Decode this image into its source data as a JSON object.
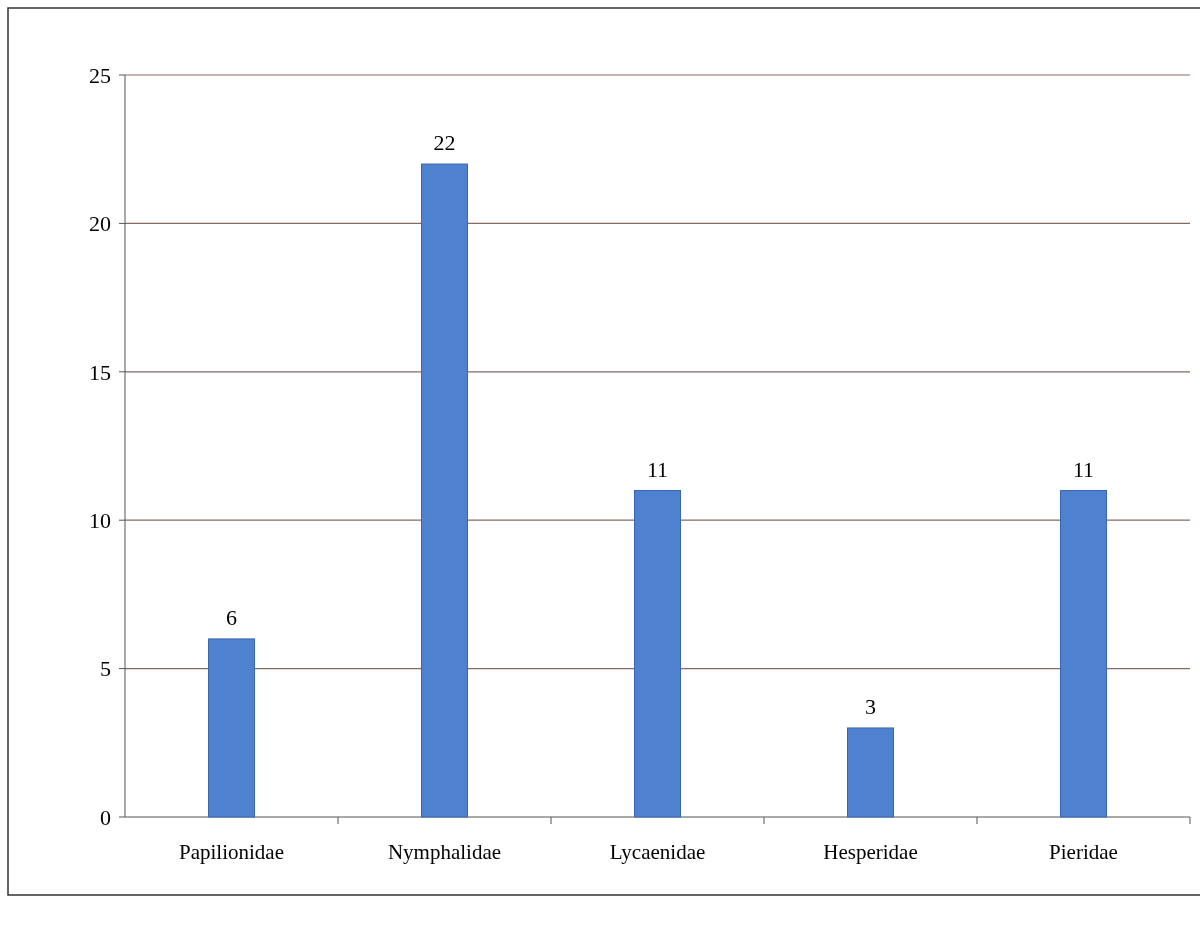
{
  "chart_data": {
    "type": "bar",
    "categories": [
      "Papilionidae",
      "Nymphalidae",
      "Lycaenidae",
      "Hesperidae",
      "Pieridae"
    ],
    "values": [
      6,
      22,
      11,
      3,
      11
    ],
    "color": "#4f81d1",
    "ylim": [
      0,
      25
    ],
    "yticks": [
      0,
      5,
      10,
      15,
      20,
      25
    ],
    "grid": "y",
    "data_labels": true
  }
}
